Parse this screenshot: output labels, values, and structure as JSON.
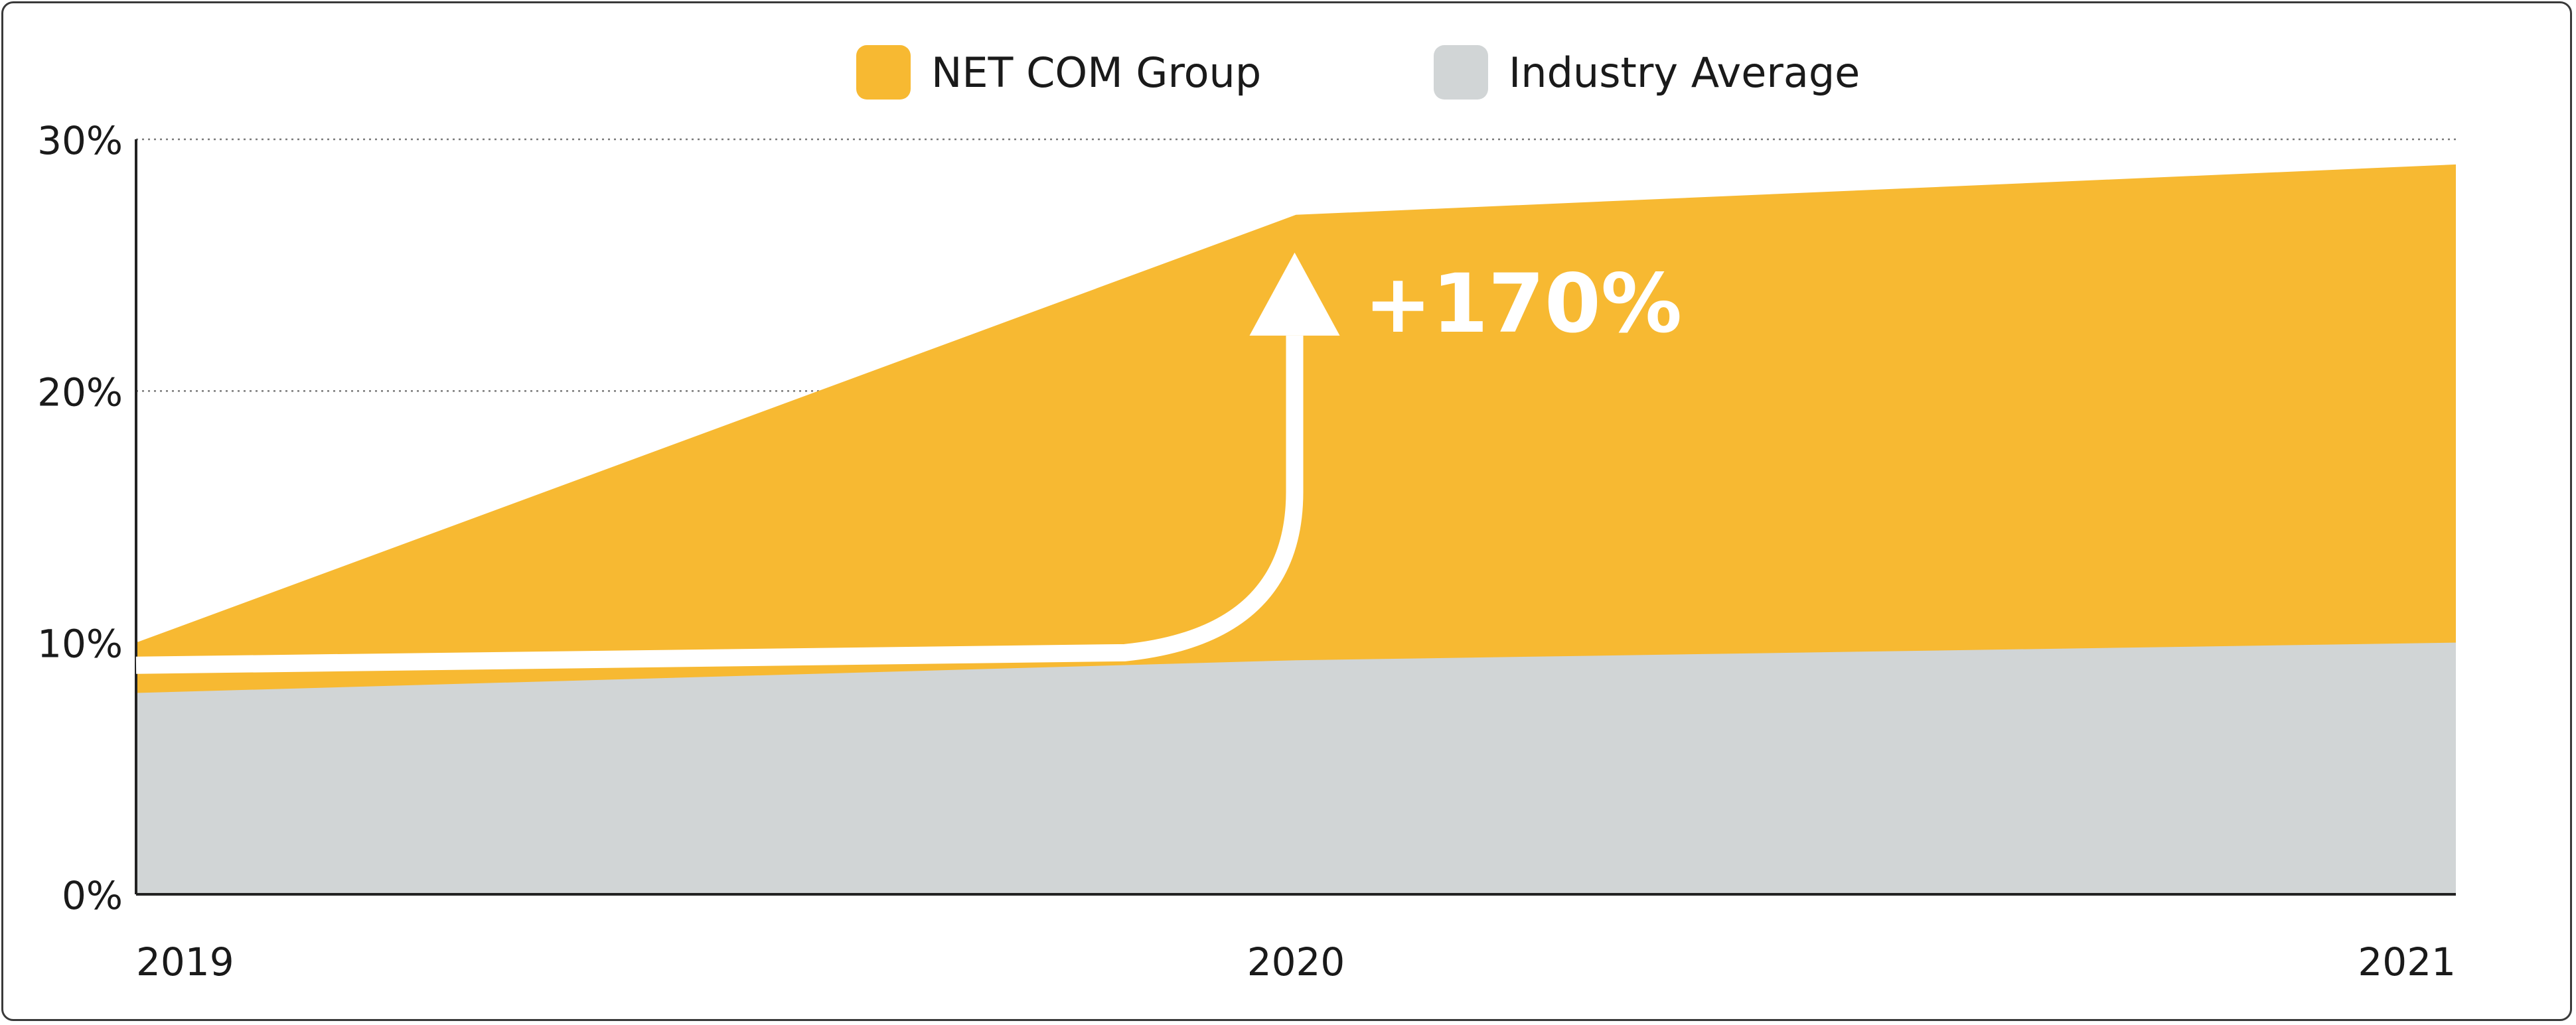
{
  "chart_data": {
    "type": "area",
    "x": [
      "2019",
      "2020",
      "2021"
    ],
    "series": [
      {
        "name": "Industry Average",
        "values": [
          8,
          9.3,
          10
        ],
        "color": "#d1d5d6"
      },
      {
        "name": "NET COM Group",
        "values": [
          10,
          27,
          29
        ],
        "color": "#f7b932"
      }
    ],
    "legend_position": "top-center",
    "ylim": [
      0,
      30
    ],
    "y_ticks": [
      "0%",
      "10%",
      "20%",
      "30%"
    ],
    "y_tick_values": [
      0,
      10,
      20,
      30
    ],
    "grid": "horizontal-dotted",
    "annotation": {
      "text": "+170%",
      "color": "#ffffff",
      "marker": "up-arrow"
    }
  }
}
